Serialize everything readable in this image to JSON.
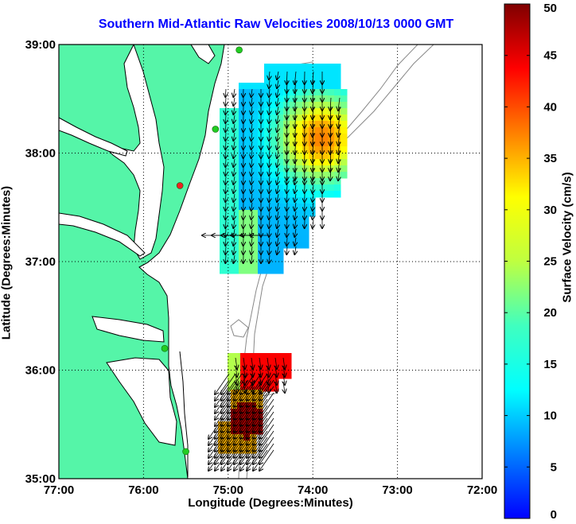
{
  "title": "Southern Mid-Atlantic Raw Velocities 2008/10/13 0000 GMT",
  "xlabel": "Longitude (Degrees:Minutes)",
  "ylabel": "Latitude (Degrees:Minutes)",
  "colorbar": {
    "label": "Surface Velocity (cm/s)",
    "ticks": [
      "0",
      "5",
      "10",
      "15",
      "20",
      "25",
      "30",
      "35",
      "40",
      "45",
      "50"
    ],
    "range": [
      0,
      50
    ]
  },
  "map": {
    "x_ticks": [
      "77:00",
      "76:00",
      "75:00",
      "74:00",
      "73:00",
      "72:00"
    ],
    "y_ticks": [
      "39:00",
      "38:00",
      "37:00",
      "36:00",
      "35:00"
    ],
    "lon_range": [
      -77,
      -72
    ],
    "lat_range": [
      35,
      39
    ],
    "grid": "dotted",
    "land_color": "#55f5a8",
    "coast_color": "#000000",
    "bathymetry_color": "#888888",
    "stations": [
      {
        "lon": -74.87,
        "lat": 38.95,
        "color": "#22cc22"
      },
      {
        "lon": -75.15,
        "lat": 38.22,
        "color": "#22cc22"
      },
      {
        "lon": -75.57,
        "lat": 37.7,
        "color": "#ee2222"
      },
      {
        "lon": -75.75,
        "lat": 36.2,
        "color": "#22cc22"
      },
      {
        "lon": -75.5,
        "lat": 35.25,
        "color": "#22cc22"
      }
    ]
  }
}
